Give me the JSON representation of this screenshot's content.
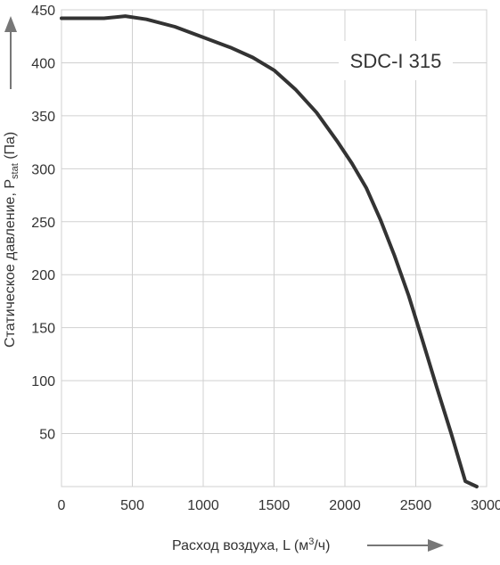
{
  "chart_data": {
    "type": "line",
    "title": "",
    "xlabel": "Расход воздуха, L (м³/ч)",
    "ylabel": "Статическое давление, Pstat (Па)",
    "ylabel_parts": {
      "main": "Статическое давление, P",
      "sub": "stat",
      "tail": " (Па)"
    },
    "xlabel_parts": {
      "main": "Расход воздуха, L (м",
      "sup": "3",
      "tail": "/ч)"
    },
    "xlim": [
      0,
      3000
    ],
    "ylim": [
      0,
      450
    ],
    "x_ticks": [
      0,
      500,
      1000,
      1500,
      2000,
      2500,
      3000
    ],
    "y_ticks": [
      50,
      100,
      150,
      200,
      250,
      300,
      350,
      400,
      450
    ],
    "grid": true,
    "legend": "none",
    "annotation": "SDC-I 315",
    "series": [
      {
        "x": [
          0,
          300,
          450,
          600,
          800,
          1000,
          1200,
          1350,
          1500,
          1650,
          1800,
          1950,
          2050,
          2150,
          2250,
          2350,
          2450,
          2550,
          2650,
          2750,
          2850,
          2930
        ],
        "y": [
          442,
          442,
          444,
          441,
          434,
          424,
          414,
          405,
          393,
          375,
          353,
          325,
          305,
          282,
          252,
          218,
          180,
          137,
          93,
          50,
          5,
          0
        ]
      }
    ],
    "colors": {
      "line": "#333333",
      "grid": "#d0d0d0",
      "frame": "#d0d0d0",
      "text": "#333333",
      "arrow": "#777777"
    }
  }
}
